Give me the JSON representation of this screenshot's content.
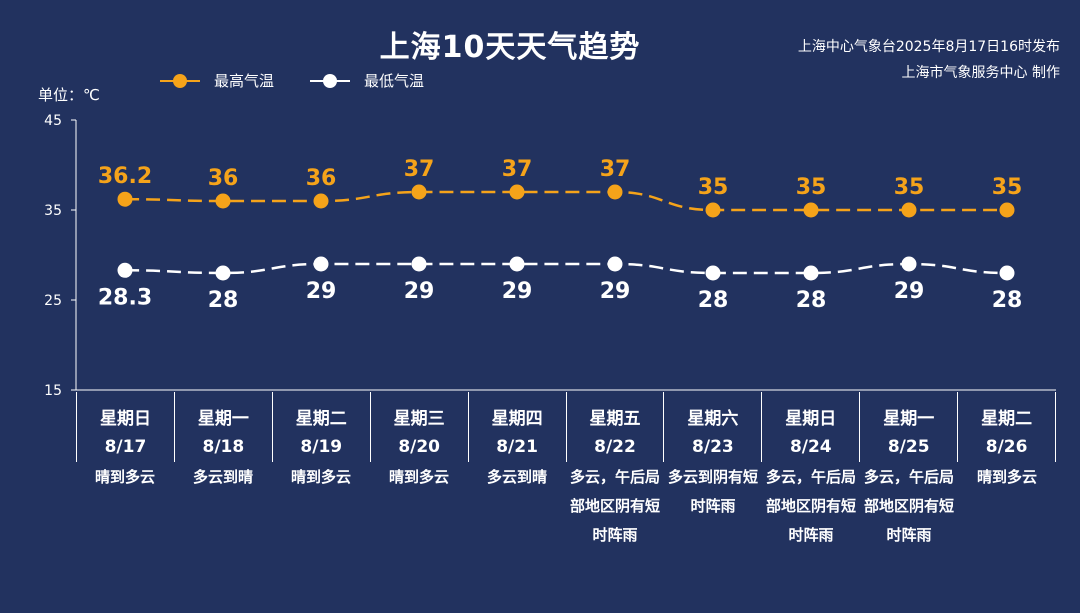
{
  "header": {
    "title": "上海10天天气趋势",
    "issuer_line1": "上海中心气象台2025年8月17日16时发布",
    "issuer_line2": "上海市气象服务中心 制作"
  },
  "legend": {
    "high_label": "最高气温",
    "low_label": "最低气温"
  },
  "unit_label": "单位：℃",
  "colors": {
    "background": "#22325f",
    "high": "#f5a31a",
    "low": "#ffffff",
    "axis": "#ffffff"
  },
  "chart_data": {
    "type": "line",
    "title": "上海10天天气趋势",
    "ylabel": "单位：℃",
    "ylim": [
      15,
      45
    ],
    "yticks": [
      15,
      25,
      35,
      45
    ],
    "grid": false,
    "legend_position": "top-left",
    "categories": [
      "8/17",
      "8/18",
      "8/19",
      "8/20",
      "8/21",
      "8/22",
      "8/23",
      "8/24",
      "8/25",
      "8/26"
    ],
    "series": [
      {
        "name": "最高气温",
        "values": [
          36.2,
          36,
          36,
          37,
          37,
          37,
          35,
          35,
          35,
          35
        ]
      },
      {
        "name": "最低气温",
        "values": [
          28.3,
          28,
          29,
          29,
          29,
          29,
          28,
          28,
          29,
          28
        ]
      }
    ]
  },
  "days": [
    {
      "weekday": "星期日",
      "date": "8/17",
      "weather": "晴到多云"
    },
    {
      "weekday": "星期一",
      "date": "8/18",
      "weather": "多云到晴"
    },
    {
      "weekday": "星期二",
      "date": "8/19",
      "weather": "晴到多云"
    },
    {
      "weekday": "星期三",
      "date": "8/20",
      "weather": "晴到多云"
    },
    {
      "weekday": "星期四",
      "date": "8/21",
      "weather": "多云到晴"
    },
    {
      "weekday": "星期五",
      "date": "8/22",
      "weather": "多云，午后局部地区阴有短时阵雨"
    },
    {
      "weekday": "星期六",
      "date": "8/23",
      "weather": "多云到阴有短时阵雨"
    },
    {
      "weekday": "星期日",
      "date": "8/24",
      "weather": "多云，午后局部地区阴有短时阵雨"
    },
    {
      "weekday": "星期一",
      "date": "8/25",
      "weather": "多云，午后局部地区阴有短时阵雨"
    },
    {
      "weekday": "星期二",
      "date": "8/26",
      "weather": "晴到多云"
    }
  ]
}
